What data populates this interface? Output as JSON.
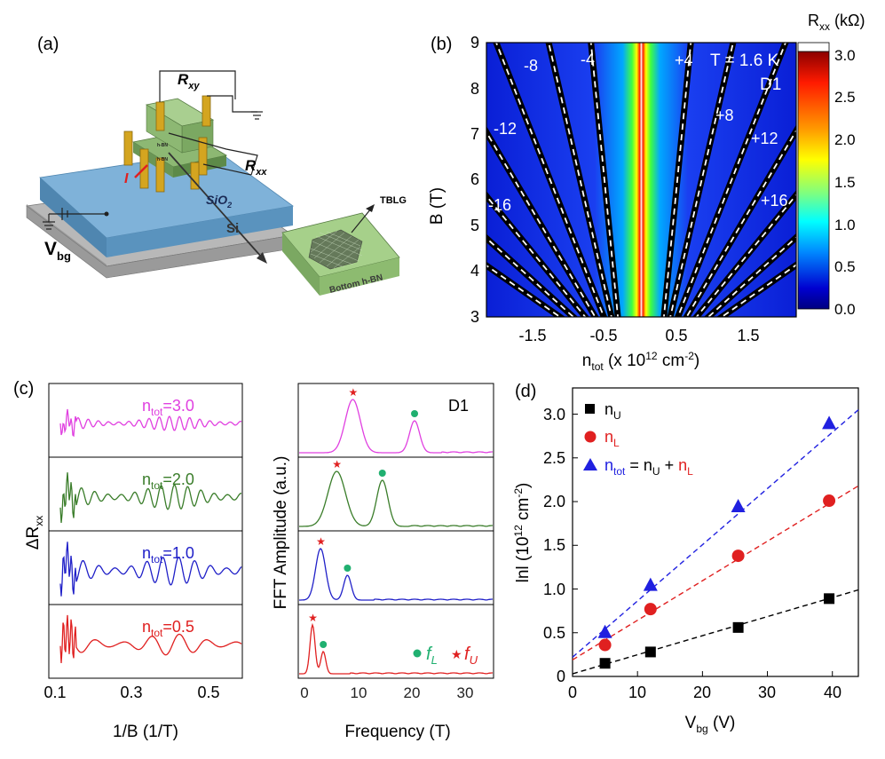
{
  "panel_labels": {
    "a": "(a)",
    "b": "(b)",
    "c": "(c)",
    "d": "(d)"
  },
  "panel_a": {
    "rxy": "R",
    "rxy_sub": "xy",
    "rxx": "R",
    "rxx_sub": "xx",
    "current": "I",
    "sio2": "SiO",
    "sio2_sub": "2",
    "si": "Si",
    "hbn_top": "h-BN",
    "hbn_bottom": "h-BN",
    "vbg": "V",
    "vbg_sub": "bg",
    "tblg": "TBLG",
    "bottom_hbn": "Bottom h-BN"
  },
  "panel_b": {
    "colorbar_title": "R",
    "colorbar_title_sub": "xx",
    "colorbar_unit": " (kΩ)",
    "colorbar_ticks": [
      "3.0",
      "2.5",
      "2.0",
      "1.5",
      "1.0",
      "0.5",
      "0.0"
    ],
    "ylabel": "B (T)",
    "yticks": [
      "9",
      "8",
      "7",
      "6",
      "5",
      "4",
      "3"
    ],
    "xticks": [
      "-1.5",
      "-0.5",
      "0.5",
      "1.5"
    ],
    "xlabel_main": "n",
    "xlabel_sub": "tot",
    "xlabel_rest": " (x 10",
    "xlabel_sup1": "12",
    "xlabel_cm": " cm",
    "xlabel_sup2": "-2",
    "xlabel_end": ")",
    "temperature": "T = 1.6 K",
    "device": "D1",
    "fan_labels": [
      "-8",
      "-4",
      "+4",
      "-12",
      "+8",
      "+12",
      "-16",
      "+16"
    ]
  },
  "panel_c_left": {
    "ylabel": "ΔR",
    "ylabel_sub": "xx",
    "xlabel": "1/B (1/T)",
    "xticks": [
      "0.1",
      "0.3",
      "0.5"
    ],
    "traces": [
      {
        "label": "n",
        "sub": "tot",
        "value": "=3.0",
        "color": "#e040e0"
      },
      {
        "label": "n",
        "sub": "tot",
        "value": "=2.0",
        "color": "#3a7d2a"
      },
      {
        "label": "n",
        "sub": "tot",
        "value": "=1.0",
        "color": "#2020c8"
      },
      {
        "label": "n",
        "sub": "tot",
        "value": "=0.5",
        "color": "#e02020"
      }
    ]
  },
  "panel_c_right": {
    "ylabel": "FFT Amplitude (a.u.)",
    "xlabel": "Frequency (T)",
    "xticks": [
      "0",
      "10",
      "20",
      "30"
    ],
    "device": "D1",
    "legend_fl": "f",
    "legend_fl_sub": "L",
    "legend_fu": "f",
    "legend_fu_sub": "U",
    "peaks": [
      {
        "n_tot": 3.0,
        "f_U": 9,
        "f_L": 20.5
      },
      {
        "n_tot": 2.0,
        "f_U": 6,
        "f_L": 14.5
      },
      {
        "n_tot": 1.0,
        "f_U": 3,
        "f_L": 8
      },
      {
        "n_tot": 0.5,
        "f_U": 1.5,
        "f_L": 3.5
      }
    ]
  },
  "chart_data": {
    "type": "scatter",
    "ylabel": "lnl (10",
    "ylabel_sup": "12",
    "ylabel_rest": " cm",
    "ylabel_sup2": "-2",
    "ylabel_end": ")",
    "xlabel": "V",
    "xlabel_sub": "bg",
    "xlabel_rest": " (V)",
    "xlim": [
      0,
      44
    ],
    "ylim": [
      0,
      3.3
    ],
    "xticks": [
      0,
      10,
      20,
      30,
      40
    ],
    "yticks": [
      0,
      0.5,
      1.0,
      1.5,
      2.0,
      2.5,
      3.0
    ],
    "ytick_labels": [
      "0",
      "0.5",
      "1.0",
      "1.5",
      "2.0",
      "2.5",
      "3.0"
    ],
    "legend": [
      {
        "name": "n",
        "sub": "U",
        "color": "#000000"
      },
      {
        "name": "n",
        "sub": "L",
        "color": "#e02020"
      },
      {
        "name": "n",
        "sub": "tot",
        "rest": " = n",
        "rest_sub": "U",
        "plus": " + ",
        "plus_name": "n",
        "plus_sub": "L",
        "color": "#2020e0"
      }
    ],
    "series": [
      {
        "name": "n_U",
        "marker": "square",
        "color": "#000000",
        "x": [
          5,
          12,
          25.5,
          39.5
        ],
        "y": [
          0.15,
          0.28,
          0.56,
          0.89
        ],
        "fit": [
          [
            0,
            0.03
          ],
          [
            44,
            0.99
          ]
        ]
      },
      {
        "name": "n_L",
        "marker": "circle",
        "color": "#e02020",
        "x": [
          5,
          12,
          25.5,
          39.5
        ],
        "y": [
          0.36,
          0.77,
          1.38,
          2.01
        ],
        "fit": [
          [
            0,
            0.19
          ],
          [
            44,
            2.18
          ]
        ]
      },
      {
        "name": "n_tot",
        "marker": "triangle",
        "color": "#2020e0",
        "x": [
          5,
          12,
          25.5,
          39.5
        ],
        "y": [
          0.51,
          1.05,
          1.95,
          2.9
        ],
        "fit": [
          [
            0,
            0.22
          ],
          [
            44,
            3.05
          ]
        ]
      }
    ]
  }
}
